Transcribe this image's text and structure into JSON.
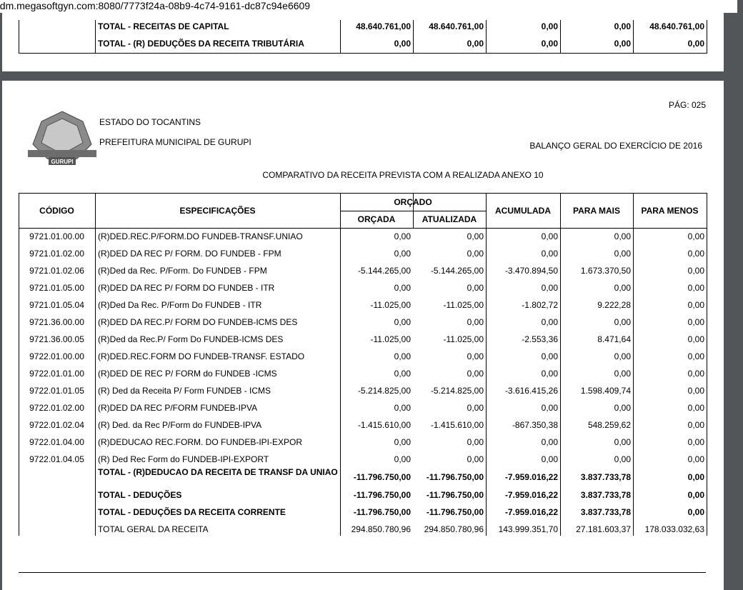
{
  "url": "adm.megasoftgyn.com:8080/7773f24a-08b9-4c74-9161-dc87c94e6609",
  "top_page": {
    "rows": [
      {
        "label": "TOTAL - RECEITAS DE CAPITAL",
        "values": [
          "48.640.761,00",
          "48.640.761,00",
          "0,00",
          "0,00",
          "48.640.761,00"
        ]
      },
      {
        "label": "TOTAL - (R) DEDUÇÕES DA RECEITA TRIBUTÁRIA",
        "values": [
          "0,00",
          "0,00",
          "0,00",
          "0,00",
          "0,00"
        ]
      }
    ]
  },
  "header": {
    "page_number": "PÁG: 025",
    "logo_text": "GURUPI",
    "state": "ESTADO DO TOCANTINS",
    "prefecture": "PREFEITURA MUNICIPAL DE GURUPI",
    "report_title": "BALANÇO GERAL DO EXERCÍCIO DE 2016",
    "subtitle": "COMPARATIVO DA RECEITA PREVISTA COM A REALIZADA ANEXO 10"
  },
  "table": {
    "group_header": "ORÇADO",
    "columns": [
      "CÓDIGO",
      "ESPECIFICAÇÕES",
      "ORÇADA",
      "ATUALIZADA",
      "ACUMULADA",
      "PARA MAIS",
      "PARA MENOS"
    ],
    "rows": [
      [
        "9721.01.00.00",
        "(R)DED.REC.P/FORM.DO FUNDEB-TRANSF.UNIAO",
        "0,00",
        "0,00",
        "0,00",
        "0,00",
        "0,00"
      ],
      [
        "9721.01.02.00",
        "(R)DED DA REC P/ FORM. DO FUNDEB - FPM",
        "0,00",
        "0,00",
        "0,00",
        "0,00",
        "0,00"
      ],
      [
        "9721.01.02.06",
        "(R)Ded da Rec. P/Form. Do FUNDEB - FPM",
        "-5.144.265,00",
        "-5.144.265,00",
        "-3.470.894,50",
        "1.673.370,50",
        "0,00"
      ],
      [
        "9721.01.05.00",
        "(R)DED DA REC P/ FORM DO FUNDEB - ITR",
        "0,00",
        "0,00",
        "0,00",
        "0,00",
        "0,00"
      ],
      [
        "9721.01.05.04",
        "(R)Ded Da Rec. P/Form Do FUNDEB - ITR",
        "-11.025,00",
        "-11.025,00",
        "-1.802,72",
        "9.222,28",
        "0,00"
      ],
      [
        "9721.36.00.00",
        "(R)DED DA REC.P/ FORM DO FUNDEB-ICMS DES",
        "0,00",
        "0,00",
        "0,00",
        "0,00",
        "0,00"
      ],
      [
        "9721.36.00.05",
        "(R)Ded da Rec.P/ Form Do FUNDEB-ICMS DES",
        "-11.025,00",
        "-11.025,00",
        "-2.553,36",
        "8.471,64",
        "0,00"
      ],
      [
        "9722.01.00.00",
        "(R)DED.REC.FORM DO FUNDEB-TRANSF. ESTADO",
        "0,00",
        "0,00",
        "0,00",
        "0,00",
        "0,00"
      ],
      [
        "9722.01.01.00",
        "(R)DED DE REC P/ FORM do FUNDEB -ICMS",
        "0,00",
        "0,00",
        "0,00",
        "0,00",
        "0,00"
      ],
      [
        "9722.01.01.05",
        "(R) Ded da Receita P/ Form FUNDEB - ICMS",
        "-5.214.825,00",
        "-5.214.825,00",
        "-3.616.415,26",
        "1.598.409,74",
        "0,00"
      ],
      [
        "9722.01.02.00",
        "(R)DED DA REC P/FORM FUNDEB-IPVA",
        "0,00",
        "0,00",
        "0,00",
        "0,00",
        "0,00"
      ],
      [
        "9722.01.02.04",
        "(R) Ded. da Rec P/Form do FUNDEB-IPVA",
        "-1.415.610,00",
        "-1.415.610,00",
        "-867.350,38",
        "548.259,62",
        "0,00"
      ],
      [
        "9722.01.04.00",
        "(R)DEDUCAO REC.FORM. DO FUNDEB-IPI-EXPOR",
        "0,00",
        "0,00",
        "0,00",
        "0,00",
        "0,00"
      ],
      [
        "9722.01.04.05",
        "(R) Ded Rec Form do FUNDEB-IPI-EXPORT",
        "0,00",
        "0,00",
        "0,00",
        "0,00",
        "0,00"
      ]
    ],
    "totals": [
      {
        "label": "TOTAL - (R)DEDUCAO DA RECEITA DE TRANSF DA UNIAO",
        "values": [
          "-11.796.750,00",
          "-11.796.750,00",
          "-7.959.016,22",
          "3.837.733,78",
          "0,00"
        ]
      },
      {
        "label": "TOTAL - DEDUÇÕES",
        "values": [
          "-11.796.750,00",
          "-11.796.750,00",
          "-7.959.016,22",
          "3.837.733,78",
          "0,00"
        ]
      },
      {
        "label": "TOTAL - DEDUÇÕES DA RECEITA CORRENTE",
        "values": [
          "-11.796.750,00",
          "-11.796.750,00",
          "-7.959.016,22",
          "3.837.733,78",
          "0,00"
        ]
      },
      {
        "label": "TOTAL GERAL DA RECEITA",
        "values": [
          "294.850.780,96",
          "294.850.780,96",
          "143.999.351,70",
          "27.181.603,37",
          "178.033.032,63"
        ]
      }
    ]
  }
}
